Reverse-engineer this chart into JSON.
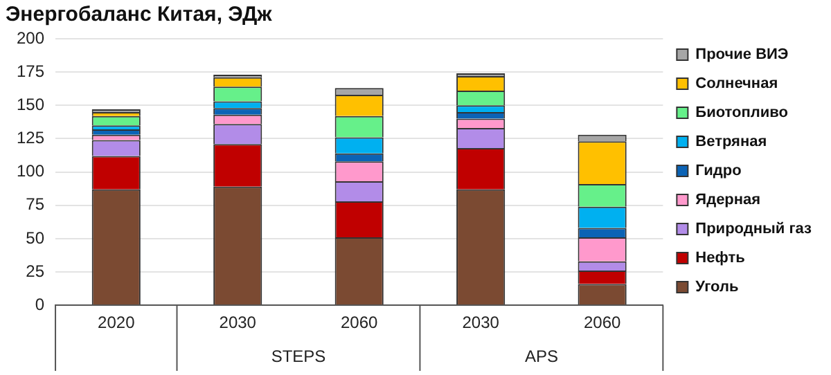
{
  "chart_data": {
    "type": "bar",
    "title": "Энергобаланс Китая, ЭДж",
    "categories": [
      "2020",
      "2030",
      "2060",
      "2030",
      "2060"
    ],
    "stacked": true,
    "series": [
      {
        "name": "Уголь",
        "color": "#7b4a32",
        "values": [
          87,
          89,
          51,
          87,
          16
        ]
      },
      {
        "name": "Нефть",
        "color": "#c00000",
        "values": [
          25,
          32,
          27,
          31,
          10
        ]
      },
      {
        "name": "Природный газ",
        "color": "#b28ce8",
        "values": [
          12,
          15,
          15,
          15,
          7
        ]
      },
      {
        "name": "Ядерная",
        "color": "#ff99cc",
        "values": [
          4,
          7,
          15,
          7,
          18
        ]
      },
      {
        "name": "Гидро",
        "color": "#0b63b5",
        "values": [
          4,
          5,
          6,
          5,
          7
        ]
      },
      {
        "name": "Ветряная",
        "color": "#00b0f0",
        "values": [
          3,
          5,
          12,
          5,
          16
        ]
      },
      {
        "name": "Биотопливо",
        "color": "#66f08a",
        "values": [
          7,
          11,
          16,
          11,
          17
        ]
      },
      {
        "name": "Солнечная",
        "color": "#ffc000",
        "values": [
          3,
          7,
          16,
          11,
          32
        ]
      },
      {
        "name": "Прочие ВИЭ",
        "color": "#a6a6a6",
        "values": [
          2,
          2,
          5,
          2,
          5
        ]
      }
    ],
    "ylim": [
      0,
      200
    ],
    "yticks": [
      0,
      25,
      50,
      75,
      100,
      125,
      150,
      175,
      200
    ],
    "grid": "y",
    "legend": "right",
    "annotations": [
      "STEPS",
      "APS"
    ]
  }
}
